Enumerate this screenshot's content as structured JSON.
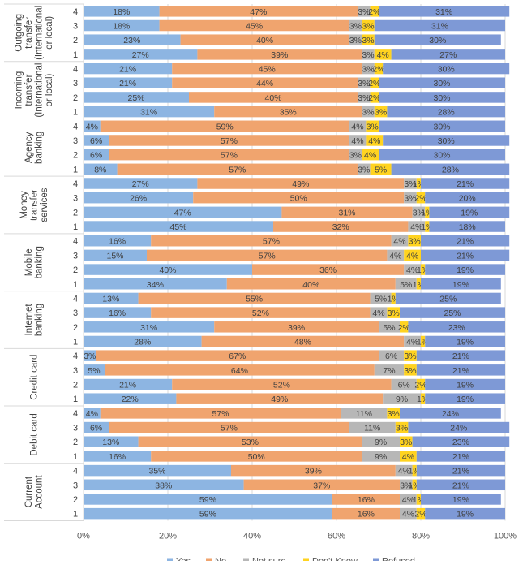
{
  "chart_data": {
    "type": "bar",
    "orientation": "horizontal",
    "stacked": "percent",
    "groups": [
      {
        "label": [
          "Outgoing",
          "transfer",
          "(International",
          "or local)"
        ],
        "rows": [
          {
            "label": "4",
            "values": [
              18,
              47,
              3,
              2,
              31
            ],
            "labels": [
              "18%",
              "47%",
              "3%",
              "2%",
              "31%"
            ]
          },
          {
            "label": "3",
            "values": [
              18,
              45,
              3,
              3,
              31
            ],
            "labels": [
              "18%",
              "45%",
              "3%",
              "3%",
              "31%"
            ]
          },
          {
            "label": "2",
            "values": [
              23,
              40,
              3,
              3,
              30
            ],
            "labels": [
              "23%",
              "40%",
              "3%",
              "3%",
              "30%"
            ]
          },
          {
            "label": "1",
            "values": [
              27,
              39,
              3,
              4,
              27
            ],
            "labels": [
              "27%",
              "39%",
              "3%",
              "4%",
              "27%"
            ]
          }
        ]
      },
      {
        "label": [
          "Incoming",
          "transfer",
          "(International",
          "or local)"
        ],
        "rows": [
          {
            "label": "4",
            "values": [
              21,
              45,
              3,
              2,
              30
            ],
            "labels": [
              "21%",
              "45%",
              "3%",
              "2%",
              "30%"
            ]
          },
          {
            "label": "3",
            "values": [
              21,
              44,
              3,
              2,
              30
            ],
            "labels": [
              "21%",
              "44%",
              "3%",
              "2%",
              "30%"
            ]
          },
          {
            "label": "2",
            "values": [
              25,
              40,
              3,
              2,
              30
            ],
            "labels": [
              "25%",
              "40%",
              "3%",
              "2%",
              "30%"
            ]
          },
          {
            "label": "1",
            "values": [
              31,
              35,
              3,
              3,
              28
            ],
            "labels": [
              "31%",
              "35%",
              "3%",
              "3%",
              "28%"
            ]
          }
        ]
      },
      {
        "label": [
          "Agency",
          "banking"
        ],
        "rows": [
          {
            "label": "4",
            "values": [
              4,
              59,
              4,
              3,
              30
            ],
            "labels": [
              "4%",
              "59%",
              "4%",
              "3%",
              "30%"
            ]
          },
          {
            "label": "3",
            "values": [
              6,
              57,
              4,
              4,
              30
            ],
            "labels": [
              "6%",
              "57%",
              "4%",
              "4%",
              "30%"
            ]
          },
          {
            "label": "2",
            "values": [
              6,
              57,
              3,
              4,
              30
            ],
            "labels": [
              "6%",
              "57%",
              "3%",
              "4%",
              "30%"
            ]
          },
          {
            "label": "1",
            "values": [
              8,
              57,
              3,
              5,
              28
            ],
            "labels": [
              "8%",
              "57%",
              "3%",
              "5%",
              "28%"
            ]
          }
        ]
      },
      {
        "label": [
          "Money",
          "transfer",
          "services"
        ],
        "rows": [
          {
            "label": "4",
            "values": [
              27,
              49,
              3,
              1,
              21
            ],
            "labels": [
              "27%",
              "49%",
              "3%",
              "1%",
              "21%"
            ]
          },
          {
            "label": "3",
            "values": [
              26,
              50,
              3,
              2,
              20
            ],
            "labels": [
              "26%",
              "50%",
              "3%",
              "2%",
              "20%"
            ]
          },
          {
            "label": "2",
            "values": [
              47,
              31,
              3,
              1,
              19
            ],
            "labels": [
              "47%",
              "31%",
              "3%",
              "1%",
              "19%"
            ]
          },
          {
            "label": "1",
            "values": [
              45,
              32,
              4,
              1,
              18
            ],
            "labels": [
              "45%",
              "32%",
              "4%",
              "1%",
              "18%"
            ]
          }
        ]
      },
      {
        "label": [
          "Mobile",
          "banking"
        ],
        "rows": [
          {
            "label": "4",
            "values": [
              16,
              57,
              4,
              3,
              21
            ],
            "labels": [
              "16%",
              "57%",
              "4%",
              "3%",
              "21%"
            ]
          },
          {
            "label": "3",
            "values": [
              15,
              57,
              4,
              4,
              21
            ],
            "labels": [
              "15%",
              "57%",
              "4%",
              "4%",
              "21%"
            ]
          },
          {
            "label": "2",
            "values": [
              40,
              36,
              4,
              1,
              19
            ],
            "labels": [
              "40%",
              "36%",
              "4%",
              "1%",
              "19%"
            ]
          },
          {
            "label": "1",
            "values": [
              34,
              40,
              5,
              1,
              19
            ],
            "labels": [
              "34%",
              "40%",
              "5%",
              "1%",
              "19%"
            ]
          }
        ]
      },
      {
        "label": [
          "Internet",
          "banking"
        ],
        "rows": [
          {
            "label": "4",
            "values": [
              13,
              55,
              5,
              1,
              25
            ],
            "labels": [
              "13%",
              "55%",
              "5%",
              "1%",
              "25%"
            ]
          },
          {
            "label": "3",
            "values": [
              16,
              52,
              4,
              3,
              25
            ],
            "labels": [
              "16%",
              "52%",
              "4%",
              "3%",
              "25%"
            ]
          },
          {
            "label": "2",
            "values": [
              31,
              39,
              5,
              2,
              23
            ],
            "labels": [
              "31%",
              "39%",
              "5%",
              "2%",
              "23%"
            ]
          },
          {
            "label": "1",
            "values": [
              28,
              48,
              4,
              1,
              19
            ],
            "labels": [
              "28%",
              "48%",
              "4%",
              "1%",
              "19%"
            ]
          }
        ]
      },
      {
        "label": [
          "Credit card"
        ],
        "rows": [
          {
            "label": "4",
            "values": [
              3,
              67,
              6,
              3,
              21
            ],
            "labels": [
              "3%",
              "67%",
              "6%",
              "3%",
              "21%"
            ]
          },
          {
            "label": "3",
            "values": [
              5,
              64,
              7,
              3,
              21
            ],
            "labels": [
              "5%",
              "64%",
              "7%",
              "3%",
              "21%"
            ]
          },
          {
            "label": "2",
            "values": [
              21,
              52,
              6,
              2,
              19
            ],
            "labels": [
              "21%",
              "52%",
              "6%",
              "2%",
              "19%"
            ]
          },
          {
            "label": "1",
            "values": [
              22,
              49,
              9,
              1,
              19
            ],
            "labels": [
              "22%",
              "49%",
              "9%",
              "1%",
              "19%"
            ]
          }
        ]
      },
      {
        "label": [
          "Debit card"
        ],
        "rows": [
          {
            "label": "4",
            "values": [
              4,
              57,
              11,
              3,
              24
            ],
            "labels": [
              "4%",
              "57%",
              "11%",
              "3%",
              "24%"
            ]
          },
          {
            "label": "3",
            "values": [
              6,
              57,
              11,
              3,
              24
            ],
            "labels": [
              "6%",
              "57%",
              "11%",
              "3%",
              "24%"
            ]
          },
          {
            "label": "2",
            "values": [
              13,
              53,
              9,
              3,
              23
            ],
            "labels": [
              "13%",
              "53%",
              "9%",
              "3%",
              "23%"
            ]
          },
          {
            "label": "1",
            "values": [
              16,
              50,
              9,
              4,
              21
            ],
            "labels": [
              "16%",
              "50%",
              "9%",
              "4%",
              "21%"
            ]
          }
        ]
      },
      {
        "label": [
          "Current",
          "Account"
        ],
        "rows": [
          {
            "label": "4",
            "values": [
              35,
              39,
              4,
              1,
              21
            ],
            "labels": [
              "35%",
              "39%",
              "4%",
              "1%",
              "21%"
            ]
          },
          {
            "label": "3",
            "values": [
              38,
              37,
              3,
              1,
              21
            ],
            "labels": [
              "38%",
              "37%",
              "3%",
              "1%",
              "21%"
            ]
          },
          {
            "label": "2",
            "values": [
              59,
              16,
              4,
              1,
              19
            ],
            "labels": [
              "59%",
              "16%",
              "4%",
              "1%",
              "19%"
            ]
          },
          {
            "label": "1",
            "values": [
              59,
              16,
              4,
              2,
              19
            ],
            "labels": [
              "59%",
              "16%",
              "4%",
              "2%",
              "19%"
            ]
          }
        ]
      }
    ],
    "series": [
      {
        "name": "Yes",
        "color": "#8db5e2"
      },
      {
        "name": "No",
        "color": "#f0a46e"
      },
      {
        "name": "Not sure",
        "color": "#b7b7b7"
      },
      {
        "name": "Don't Know",
        "color": "#ffd320"
      },
      {
        "name": "Refused",
        "color": "#7e99d6"
      }
    ],
    "xlim": [
      0,
      100
    ],
    "x_ticks": [
      "0%",
      "20%",
      "40%",
      "60%",
      "80%",
      "100%"
    ],
    "grid": true,
    "legend_position": "bottom"
  }
}
